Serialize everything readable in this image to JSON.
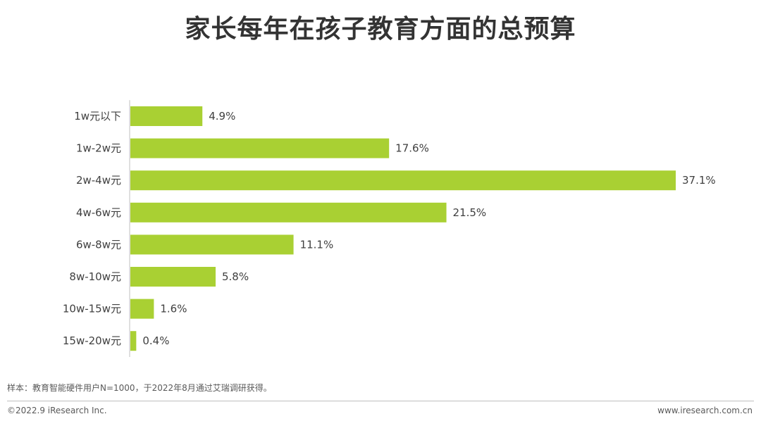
{
  "title": "家长每年在孩子教育方面的总预算",
  "chart_data": {
    "type": "bar",
    "orientation": "horizontal",
    "categories": [
      "1w元以下",
      "1w-2w元",
      "2w-4w元",
      "4w-6w元",
      "6w-8w元",
      "8w-10w元",
      "10w-15w元",
      "15w-20w元"
    ],
    "values": [
      4.9,
      17.6,
      37.1,
      21.5,
      11.1,
      5.8,
      1.6,
      0.4
    ],
    "value_labels": [
      "4.9%",
      "17.6%",
      "37.1%",
      "21.5%",
      "11.1%",
      "5.8%",
      "1.6%",
      "0.4%"
    ],
    "value_unit": "%",
    "xlim": [
      0,
      37.1
    ],
    "grid": false,
    "legend": "none",
    "bar_color": "#a9d033"
  },
  "footer": {
    "note": "样本：教育智能硬件用户N=1000，于2022年8月通过艾瑞调研获得。",
    "copyright": "©2022.9 iResearch Inc.",
    "website": "www.iresearch.com.cn"
  }
}
